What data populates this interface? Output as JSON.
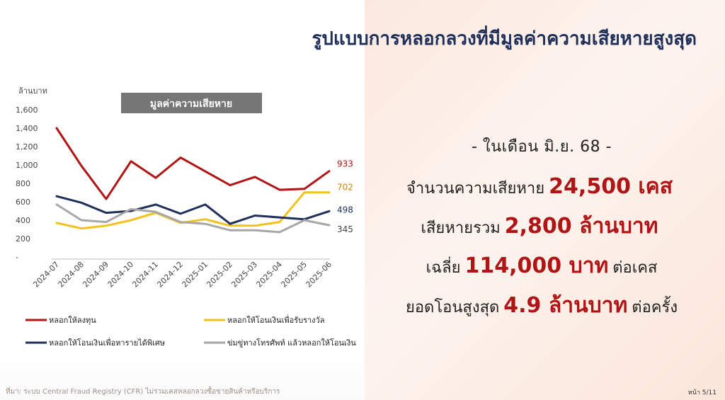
{
  "slide": {
    "title": "รูปแบบการหลอกลวงที่มีมูลค่าความเสียหายสูงสุด",
    "source": "ที่มา: ระบบ Central Fraud Registry (CFR) ไม่รวมเคสหลอกลวงซื้อขายสินค้าหรือบริการ",
    "page": "หน้า 5/11"
  },
  "stats": {
    "month": "- ในเดือน มิ.ย. 68 -",
    "cases_label": "จำนวนความเสียหาย",
    "cases_value": "24,500 เคส",
    "total_label": "เสียหายรวม",
    "total_value": "2,800 ล้านบาท",
    "avg_label": "เฉลี่ย",
    "avg_value": "114,000 บาท",
    "avg_suffix": "ต่อเคส",
    "max_label": "ยอดโอนสูงสุด",
    "max_value": "4.9 ล้านบาท",
    "max_suffix": "ต่อครั้ง"
  },
  "chart_data": {
    "type": "line",
    "title": "มูลค่าความเสียหาย",
    "ylabel": "ล้านบาท",
    "ylim": [
      0,
      1600
    ],
    "yticks": [
      0,
      200,
      400,
      600,
      800,
      1000,
      1200,
      1400,
      1600
    ],
    "ytick_labels": [
      "-",
      "200",
      "400",
      "600",
      "800",
      "1,000",
      "1,200",
      "1,400",
      "1,600"
    ],
    "categories": [
      "2024-07",
      "2024-08",
      "2024-09",
      "2024-10",
      "2024-11",
      "2024-12",
      "2025-01",
      "2025-02",
      "2025-03",
      "2025-04",
      "2025-05",
      "2025-06"
    ],
    "grid": false,
    "legend": "bottom",
    "series": [
      {
        "name": "หลอกให้ลงทุน",
        "color": "#b01414",
        "values": [
          1400,
          990,
          630,
          1040,
          860,
          1080,
          930,
          780,
          870,
          730,
          740,
          933
        ],
        "end_label": "933"
      },
      {
        "name": "หลอกให้โอนเงินเพื่อรับรางวัล",
        "color": "#f2c21b",
        "values": [
          370,
          310,
          340,
          400,
          480,
          370,
          410,
          340,
          340,
          380,
          702,
          702
        ],
        "end_label": "702"
      },
      {
        "name": "หลอกให้โอนเงินเพื่อหารายได้พิเศษ",
        "color": "#1f2f5a",
        "values": [
          660,
          590,
          480,
          500,
          570,
          470,
          570,
          360,
          450,
          430,
          410,
          498
        ],
        "end_label": "498"
      },
      {
        "name": "ข่มขู่ทางโทรศัพท์ แล้วหลอกให้โอนเงิน",
        "color": "#a7a7a7",
        "values": [
          570,
          400,
          380,
          520,
          490,
          380,
          360,
          290,
          290,
          270,
          400,
          345
        ],
        "end_label": "345"
      }
    ]
  }
}
